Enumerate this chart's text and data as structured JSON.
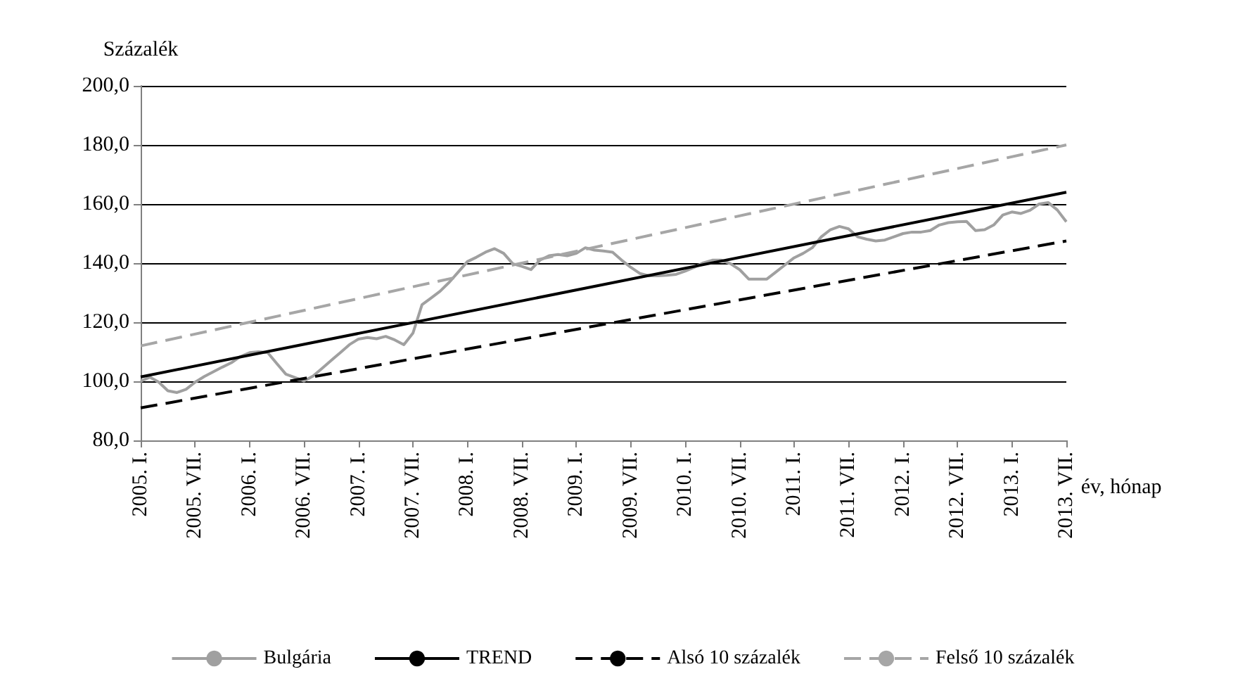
{
  "chart_data": {
    "type": "line",
    "ylabel": "Százalék",
    "xlabel": "év, hónap",
    "categories": [
      "2005. I.",
      null,
      null,
      null,
      null,
      null,
      "2005. VII.",
      null,
      null,
      null,
      null,
      null,
      "2006. I.",
      null,
      null,
      null,
      null,
      null,
      "2006. VII.",
      null,
      null,
      null,
      null,
      null,
      "2007. I.",
      null,
      null,
      null,
      null,
      null,
      "2007. VII.",
      null,
      null,
      null,
      null,
      null,
      "2008. I.",
      null,
      null,
      null,
      null,
      null,
      "2008. VII.",
      null,
      null,
      null,
      null,
      null,
      "2009. I.",
      null,
      null,
      null,
      null,
      null,
      "2009. VII.",
      null,
      null,
      null,
      null,
      null,
      "2010. I.",
      null,
      null,
      null,
      null,
      null,
      "2010. VII.",
      null,
      null,
      null,
      null,
      null,
      "2011. I.",
      null,
      null,
      null,
      null,
      null,
      "2011. VII.",
      null,
      null,
      null,
      null,
      null,
      "2012. I.",
      null,
      null,
      null,
      null,
      null,
      "2012. VII.",
      null,
      null,
      null,
      null,
      null,
      "2013. I.",
      null,
      null,
      null,
      null,
      null,
      "2013. VII."
    ],
    "series": [
      {
        "name": "Bulgária",
        "color": "#a0a0a0",
        "line_style": "solid",
        "values": [
          100.0,
          101.4,
          99.7,
          96.8,
          96.2,
          97.3,
          99.7,
          101.6,
          103.2,
          104.8,
          106.3,
          108.4,
          109.7,
          110.0,
          109.7,
          106.0,
          102.4,
          101.3,
          100.1,
          101.8,
          104.4,
          107.1,
          109.7,
          112.4,
          114.3,
          114.8,
          114.4,
          115.2,
          114.0,
          112.4,
          116.3,
          125.9,
          128.2,
          130.5,
          133.5,
          137.0,
          140.5,
          142.0,
          143.7,
          144.9,
          143.3,
          139.8,
          138.9,
          137.8,
          141.0,
          142.5,
          142.9,
          142.5,
          143.3,
          145.2,
          144.4,
          144.1,
          143.7,
          141.0,
          138.6,
          136.5,
          135.7,
          135.7,
          135.9,
          136.2,
          137.3,
          138.6,
          140.1,
          141.0,
          141.0,
          139.8,
          137.8,
          134.6,
          134.6,
          134.6,
          137.0,
          139.4,
          141.8,
          143.3,
          145.2,
          148.9,
          151.3,
          152.4,
          151.6,
          148.9,
          148.1,
          147.5,
          147.8,
          148.9,
          150.0,
          150.5,
          150.5,
          151.0,
          152.9,
          153.7,
          154.0,
          154.1,
          151.0,
          151.3,
          152.9,
          156.3,
          157.3,
          156.8,
          157.9,
          160.0,
          160.5,
          158.0,
          154.0
        ]
      },
      {
        "name": "TREND",
        "color": "#000000",
        "line_style": "solid",
        "x": [
          "2005. I.",
          "2013. VII."
        ],
        "values": [
          101.5,
          164.0
        ]
      },
      {
        "name": "Alsó 10 százalék",
        "color": "#000000",
        "line_style": "dashed",
        "x": [
          "2005. I.",
          "2013. VII."
        ],
        "values": [
          91.0,
          147.5
        ]
      },
      {
        "name": "Felső 10 százalék",
        "color": "#a6a6a6",
        "line_style": "dashed",
        "x": [
          "2005. I.",
          "2013. VII."
        ],
        "values": [
          112.0,
          180.0
        ]
      }
    ],
    "ylim": [
      80,
      200
    ],
    "yticks": [
      {
        "value": 80,
        "label": "80,0"
      },
      {
        "value": 100,
        "label": "100,0"
      },
      {
        "value": 120,
        "label": "120,0"
      },
      {
        "value": 140,
        "label": "140,0"
      },
      {
        "value": 160,
        "label": "160,0"
      },
      {
        "value": 180,
        "label": "180,0"
      },
      {
        "value": 200,
        "label": "200,0"
      }
    ],
    "grid": "y",
    "legend": "bottom",
    "marker": "none"
  }
}
